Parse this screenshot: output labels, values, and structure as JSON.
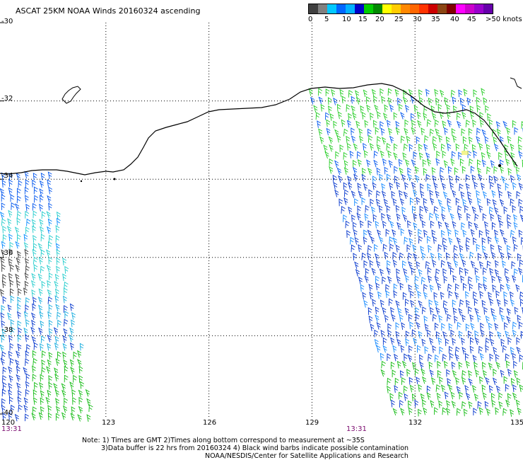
{
  "title": "ASCAT 25KM NOAA Winds 20160324 ascending",
  "legend": {
    "colors": [
      "#404040",
      "#808080",
      "#00c8ff",
      "#0066ff",
      "#00b0ff",
      "#0000c8",
      "#00cc00",
      "#008800",
      "#ffff00",
      "#ffcc00",
      "#ff8800",
      "#ff6600",
      "#ff3300",
      "#cc0000",
      "#8b4513",
      "#800000",
      "#ff00ff",
      "#cc00cc",
      "#9900cc",
      "#6600aa"
    ],
    "labels": [
      "0",
      "5",
      "10",
      "15",
      "20",
      "25",
      "30",
      "35",
      "40",
      "45",
      ">50 knots"
    ]
  },
  "axes": {
    "lon_ticks": [
      "120",
      "123",
      "126",
      "129",
      "132",
      "135"
    ],
    "lat_ticks": [
      "-30",
      "-32",
      "-34",
      "-36",
      "-38",
      "-40"
    ]
  },
  "times": {
    "left": "13:31",
    "mid": "13:31"
  },
  "notes": {
    "line1": "Note: 1) Times are GMT 2)Times along bottom correspond to measurement at ~35S",
    "line2": "3)Data buffer is 22 hrs from 20160324 4) Black wind barbs indicate possible contamination",
    "line3": "NOAA/NESDIS/Center for Satellite Applications and Research"
  },
  "chart_data": {
    "type": "map",
    "region": {
      "lon_range": [
        120,
        135
      ],
      "lat_range": [
        -40,
        -30
      ]
    },
    "grid": "dotted",
    "swaths": [
      {
        "name_hint": "west swath",
        "lon_range": [
          120,
          122.6
        ],
        "lat_range": [
          -40,
          -34
        ]
      },
      {
        "name_hint": "east swath",
        "lon_range": [
          129,
          135
        ],
        "lat_range": [
          -40,
          -31.8
        ]
      }
    ]
  }
}
